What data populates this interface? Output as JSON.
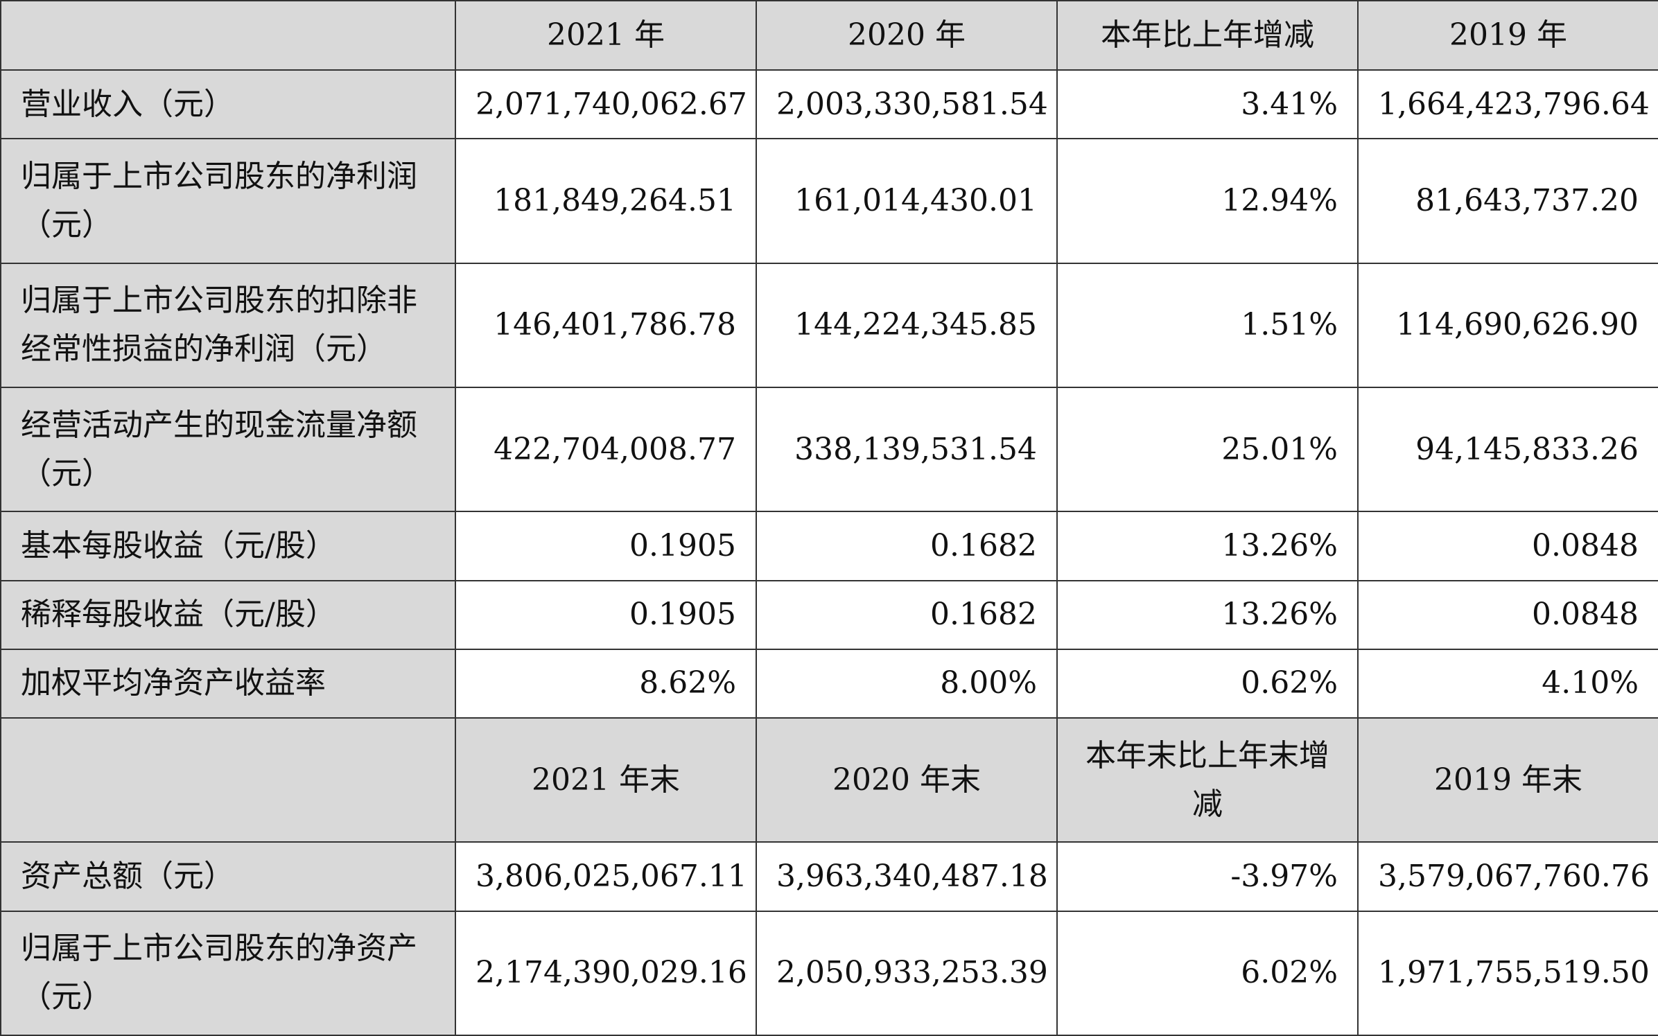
{
  "section1": {
    "headers": [
      "2021 年",
      "2020 年",
      "本年比上年增减",
      "2019 年"
    ],
    "rows": [
      {
        "label": "营业收入（元）",
        "values": [
          "2,071,740,062.67",
          "2,003,330,581.54",
          "3.41%",
          "1,664,423,796.64"
        ]
      },
      {
        "label": "归属于上市公司股东的净利润（元）",
        "values": [
          "181,849,264.51",
          "161,014,430.01",
          "12.94%",
          "81,643,737.20"
        ]
      },
      {
        "label": "归属于上市公司股东的扣除非经常性损益的净利润（元）",
        "values": [
          "146,401,786.78",
          "144,224,345.85",
          "1.51%",
          "114,690,626.90"
        ]
      },
      {
        "label": "经营活动产生的现金流量净额（元）",
        "values": [
          "422,704,008.77",
          "338,139,531.54",
          "25.01%",
          "94,145,833.26"
        ]
      },
      {
        "label": "基本每股收益（元/股）",
        "values": [
          "0.1905",
          "0.1682",
          "13.26%",
          "0.0848"
        ]
      },
      {
        "label": "稀释每股收益（元/股）",
        "values": [
          "0.1905",
          "0.1682",
          "13.26%",
          "0.0848"
        ]
      },
      {
        "label": "加权平均净资产收益率",
        "values": [
          "8.62%",
          "8.00%",
          "0.62%",
          "4.10%"
        ]
      }
    ]
  },
  "section2": {
    "headers": [
      "2021 年末",
      "2020 年末",
      "本年末比上年末增减",
      "2019 年末"
    ],
    "rows": [
      {
        "label": "资产总额（元）",
        "values": [
          "3,806,025,067.11",
          "3,963,340,487.18",
          "-3.97%",
          "3,579,067,760.76"
        ]
      },
      {
        "label": "归属于上市公司股东的净资产（元）",
        "values": [
          "2,174,390,029.16",
          "2,050,933,253.39",
          "6.02%",
          "1,971,755,519.50"
        ]
      }
    ]
  }
}
